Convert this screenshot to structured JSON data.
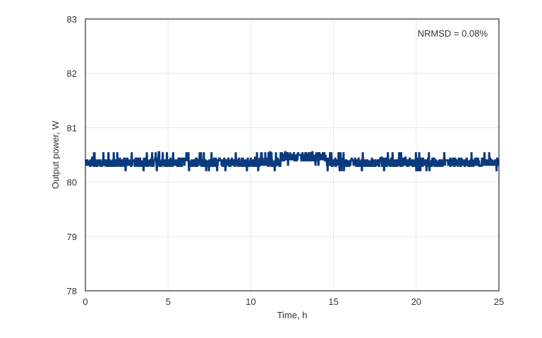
{
  "chart_data": {
    "type": "line",
    "title": "",
    "xlabel": "Time, h",
    "ylabel": "Output power, W",
    "xlim": [
      0,
      25
    ],
    "ylim": [
      78,
      83
    ],
    "xticks": [
      0,
      5,
      10,
      15,
      20,
      25
    ],
    "yticks": [
      78,
      79,
      80,
      81,
      82,
      83
    ],
    "grid": {
      "x": true,
      "y": true
    },
    "legend": "none",
    "annotation": "NRMSD = 0.08%",
    "series": [
      {
        "color": "#0b3a7e",
        "baseline": 80.35,
        "segments": [
          {
            "x0": 0,
            "x1": 11.8,
            "base": 80.35
          },
          {
            "x0": 11.8,
            "x1": 14.6,
            "base": 80.45
          },
          {
            "x0": 14.6,
            "x1": 25,
            "base": 80.35
          }
        ],
        "values_summary": {
          "min": 80.15,
          "max": 80.55,
          "mean": 80.37
        }
      }
    ]
  },
  "axes": {
    "x_tick_labels": [
      "0",
      "5",
      "10",
      "15",
      "20",
      "25"
    ],
    "y_tick_labels": [
      "78",
      "79",
      "80",
      "81",
      "82",
      "83"
    ]
  }
}
